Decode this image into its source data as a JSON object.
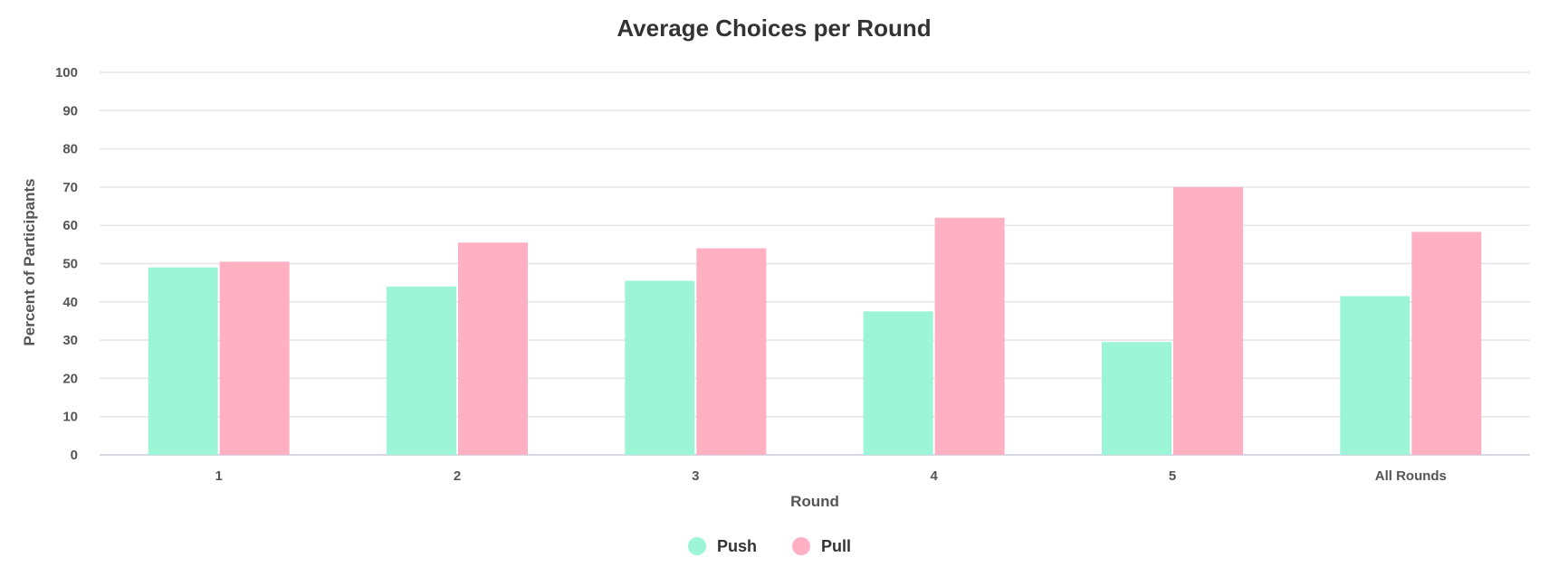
{
  "chart_data": {
    "type": "bar",
    "title": "Average Choices per Round",
    "xlabel": "Round",
    "ylabel": "Percent of Participants",
    "categories": [
      "1",
      "2",
      "3",
      "4",
      "5",
      "All Rounds"
    ],
    "series": [
      {
        "name": "Push",
        "color": "#9df5d8",
        "values": [
          49,
          44,
          45.5,
          37.5,
          29.5,
          41.5
        ]
      },
      {
        "name": "Pull",
        "color": "#ffb0c3",
        "values": [
          50.5,
          55.5,
          54,
          62,
          70,
          58.3
        ]
      }
    ],
    "ylim": [
      0,
      100
    ],
    "yticks": [
      "0",
      "10",
      "20",
      "30",
      "40",
      "50",
      "60",
      "70",
      "80",
      "90",
      "100"
    ],
    "grid": true,
    "legend_position": "bottom-center"
  }
}
